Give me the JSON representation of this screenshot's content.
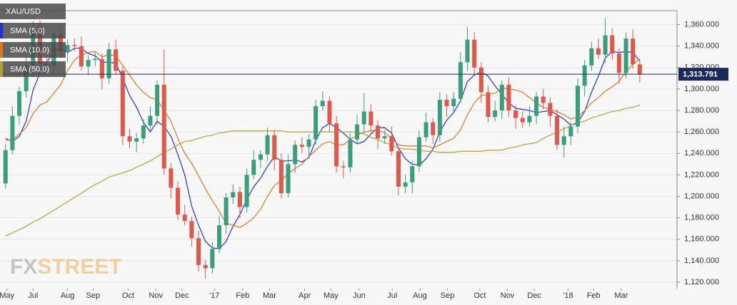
{
  "chart_data": {
    "type": "candlestick",
    "ohlc": {
      "name": "XAU/USD",
      "up_color": "#3a9d7c",
      "down_color": "#e0584a",
      "open": [
        1212,
        1243,
        1275,
        1298,
        1322,
        1358,
        1323,
        1322,
        1351,
        1335,
        1341,
        1340,
        1321,
        1327,
        1328,
        1310,
        1337,
        1317,
        1256,
        1251,
        1254,
        1266,
        1275,
        1304,
        1226,
        1208,
        1183,
        1177,
        1161,
        1136,
        1133,
        1151,
        1173,
        1199,
        1204,
        1190,
        1220,
        1234,
        1239,
        1257,
        1234,
        1203,
        1230,
        1248,
        1246,
        1253,
        1284,
        1289,
        1268,
        1228,
        1227,
        1253,
        1267,
        1279,
        1266,
        1254,
        1256,
        1242,
        1209,
        1213,
        1228,
        1255,
        1269,
        1257,
        1290,
        1284,
        1291,
        1325,
        1346,
        1320,
        1297,
        1274,
        1280,
        1304,
        1280,
        1273,
        1269,
        1275,
        1293,
        1287,
        1275,
        1248,
        1256,
        1265,
        1303,
        1322,
        1338,
        1332,
        1350,
        1333,
        1315,
        1347,
        1323
      ],
      "high": [
        1249,
        1284,
        1302,
        1329,
        1363,
        1364,
        1332,
        1355,
        1358,
        1346,
        1347,
        1349,
        1331,
        1335,
        1333,
        1343,
        1346,
        1321,
        1263,
        1259,
        1272,
        1284,
        1308,
        1337,
        1231,
        1214,
        1192,
        1181,
        1168,
        1141,
        1157,
        1182,
        1203,
        1211,
        1209,
        1226,
        1243,
        1243,
        1264,
        1262,
        1240,
        1239,
        1252,
        1255,
        1258,
        1290,
        1298,
        1293,
        1275,
        1233,
        1259,
        1276,
        1296,
        1286,
        1271,
        1262,
        1265,
        1246,
        1220,
        1233,
        1261,
        1278,
        1273,
        1297,
        1295,
        1297,
        1334,
        1358,
        1353,
        1325,
        1303,
        1289,
        1308,
        1311,
        1285,
        1279,
        1284,
        1297,
        1300,
        1292,
        1281,
        1265,
        1269,
        1310,
        1327,
        1344,
        1347,
        1366,
        1357,
        1338,
        1353,
        1356,
        1327
      ],
      "low": [
        1207,
        1239,
        1267,
        1292,
        1312,
        1318,
        1318,
        1314,
        1329,
        1325,
        1335,
        1317,
        1313,
        1321,
        1300,
        1305,
        1313,
        1248,
        1245,
        1241,
        1249,
        1262,
        1267,
        1220,
        1198,
        1178,
        1173,
        1153,
        1130,
        1123,
        1128,
        1147,
        1165,
        1193,
        1180,
        1185,
        1216,
        1226,
        1233,
        1224,
        1198,
        1199,
        1222,
        1240,
        1236,
        1248,
        1280,
        1260,
        1222,
        1217,
        1222,
        1249,
        1259,
        1260,
        1244,
        1249,
        1238,
        1201,
        1203,
        1203,
        1223,
        1251,
        1249,
        1251,
        1274,
        1279,
        1287,
        1317,
        1314,
        1287,
        1269,
        1270,
        1272,
        1274,
        1263,
        1264,
        1265,
        1267,
        1281,
        1265,
        1243,
        1236,
        1248,
        1259,
        1293,
        1317,
        1328,
        1324,
        1327,
        1305,
        1310,
        1319,
        1306
      ],
      "close": [
        1243,
        1275,
        1298,
        1322,
        1358,
        1323,
        1322,
        1351,
        1335,
        1341,
        1340,
        1321,
        1327,
        1328,
        1310,
        1337,
        1317,
        1256,
        1251,
        1254,
        1266,
        1275,
        1304,
        1226,
        1208,
        1183,
        1177,
        1161,
        1136,
        1133,
        1151,
        1173,
        1199,
        1204,
        1190,
        1220,
        1234,
        1239,
        1257,
        1234,
        1203,
        1230,
        1248,
        1246,
        1253,
        1284,
        1289,
        1268,
        1228,
        1227,
        1253,
        1267,
        1279,
        1266,
        1254,
        1256,
        1242,
        1209,
        1213,
        1228,
        1255,
        1269,
        1257,
        1290,
        1284,
        1291,
        1325,
        1346,
        1320,
        1297,
        1274,
        1280,
        1304,
        1280,
        1273,
        1269,
        1275,
        1293,
        1287,
        1275,
        1248,
        1256,
        1265,
        1303,
        1322,
        1338,
        1332,
        1350,
        1333,
        1315,
        1347,
        1323,
        1313.791
      ]
    },
    "series": [
      {
        "name": "SMA (5,0)",
        "color": "#2434d0",
        "values": [
          1254,
          1251,
          1256,
          1270,
          1299,
          1315,
          1325,
          1335,
          1338,
          1334,
          1338,
          1338,
          1333,
          1331,
          1325,
          1325,
          1324,
          1310,
          1294,
          1283,
          1269,
          1260,
          1270,
          1265,
          1256,
          1239,
          1220,
          1191,
          1173,
          1158,
          1152,
          1151,
          1158,
          1172,
          1183,
          1197,
          1209,
          1217,
          1228,
          1237,
          1233,
          1233,
          1234,
          1232,
          1236,
          1252,
          1264,
          1268,
          1264,
          1259,
          1253,
          1249,
          1251,
          1258,
          1264,
          1264,
          1259,
          1245,
          1235,
          1230,
          1229,
          1235,
          1244,
          1260,
          1271,
          1278,
          1289,
          1307,
          1313,
          1316,
          1312,
          1303,
          1295,
          1287,
          1282,
          1281,
          1280,
          1278,
          1279,
          1280,
          1276,
          1272,
          1266,
          1269,
          1279,
          1297,
          1312,
          1329,
          1335,
          1334,
          1335,
          1334,
          1326
        ]
      },
      {
        "name": "SMA (10,0)",
        "color": "#e2761f",
        "values": [
          1252,
          1253,
          1258,
          1264,
          1277,
          1285,
          1288,
          1296,
          1304,
          1317,
          1327,
          1332,
          1334,
          1335,
          1330,
          1332,
          1331,
          1322,
          1313,
          1304,
          1297,
          1292,
          1290,
          1280,
          1270,
          1254,
          1240,
          1231,
          1219,
          1207,
          1196,
          1186,
          1175,
          1173,
          1171,
          1175,
          1180,
          1188,
          1200,
          1210,
          1215,
          1221,
          1226,
          1230,
          1237,
          1243,
          1249,
          1251,
          1248,
          1248,
          1253,
          1257,
          1260,
          1261,
          1262,
          1259,
          1254,
          1248,
          1247,
          1247,
          1247,
          1247,
          1245,
          1248,
          1251,
          1254,
          1262,
          1276,
          1287,
          1294,
          1295,
          1296,
          1301,
          1300,
          1299,
          1297,
          1292,
          1287,
          1283,
          1281,
          1279,
          1276,
          1272,
          1274,
          1280,
          1287,
          1292,
          1298,
          1302,
          1307,
          1316,
          1323,
          1328
        ]
      },
      {
        "name": "SMA (50,0)",
        "color": "#b3a334",
        "values": [
          1163,
          1166,
          1169,
          1172,
          1176,
          1179,
          1183,
          1187,
          1191,
          1195,
          1199,
          1203,
          1207,
          1211,
          1214,
          1218,
          1220,
          1222,
          1224,
          1227,
          1230,
          1233,
          1237,
          1241,
          1244,
          1248,
          1251,
          1252,
          1254,
          1256,
          1257,
          1259,
          1260,
          1261,
          1261,
          1261,
          1261,
          1261,
          1261,
          1261,
          1261,
          1260,
          1260,
          1260,
          1260,
          1260,
          1260,
          1260,
          1260,
          1260,
          1260,
          1260,
          1258,
          1255,
          1253,
          1250,
          1248,
          1245,
          1244,
          1244,
          1243,
          1242,
          1242,
          1241,
          1241,
          1241,
          1242,
          1242,
          1242,
          1242,
          1243,
          1243,
          1243,
          1245,
          1246,
          1248,
          1249,
          1250,
          1254,
          1257,
          1260,
          1263,
          1266,
          1268,
          1270,
          1273,
          1275,
          1277,
          1279,
          1280,
          1282,
          1283,
          1285
        ]
      }
    ],
    "current_price": {
      "value": 1313.791,
      "label": "1,313.791",
      "color": "#1b2a5e"
    },
    "watermark": {
      "prefix": "FX",
      "suffix": "STREET"
    },
    "xlim": [
      -0.8,
      97.4
    ],
    "xticks": [
      {
        "value": 0.2,
        "label": "May"
      },
      {
        "value": 4.0,
        "label": "Jul"
      },
      {
        "value": 9.0,
        "label": "Aug"
      },
      {
        "value": 12.7,
        "label": "Sep"
      },
      {
        "value": 17.8,
        "label": "Oct"
      },
      {
        "value": 21.8,
        "label": "Nov"
      },
      {
        "value": 25.6,
        "label": "Dec"
      },
      {
        "value": 30.3,
        "label": "'17"
      },
      {
        "value": 34.4,
        "label": "Feb"
      },
      {
        "value": 38.3,
        "label": "Mar"
      },
      {
        "value": 43.4,
        "label": "Apr"
      },
      {
        "value": 47.2,
        "label": "May"
      },
      {
        "value": 51.3,
        "label": "Jun"
      },
      {
        "value": 56.1,
        "label": "Jul"
      },
      {
        "value": 60.1,
        "label": "Aug"
      },
      {
        "value": 64.1,
        "label": "Sep"
      },
      {
        "value": 68.8,
        "label": "Oct"
      },
      {
        "value": 72.8,
        "label": "Nov"
      },
      {
        "value": 76.7,
        "label": "Dec"
      },
      {
        "value": 81.6,
        "label": "'18"
      },
      {
        "value": 85.3,
        "label": "Feb"
      },
      {
        "value": 89.3,
        "label": "Mar"
      }
    ],
    "ylim": [
      1114,
      1373
    ],
    "yticks": [
      {
        "value": 1120,
        "label": "1,120.000"
      },
      {
        "value": 1140,
        "label": "1,140.000"
      },
      {
        "value": 1160,
        "label": "1,160.000"
      },
      {
        "value": 1180,
        "label": "1,180.000"
      },
      {
        "value": 1200,
        "label": "1,200.000"
      },
      {
        "value": 1220,
        "label": "1,220.000"
      },
      {
        "value": 1240,
        "label": "1,240.000"
      },
      {
        "value": 1260,
        "label": "1,260.000"
      },
      {
        "value": 1280,
        "label": "1,280.000"
      },
      {
        "value": 1300,
        "label": "1,300.000"
      },
      {
        "value": 1320,
        "label": "1,320.000"
      },
      {
        "value": 1340,
        "label": "1,340.000"
      },
      {
        "value": 1360,
        "label": "1,360.000"
      }
    ],
    "grid": true
  }
}
